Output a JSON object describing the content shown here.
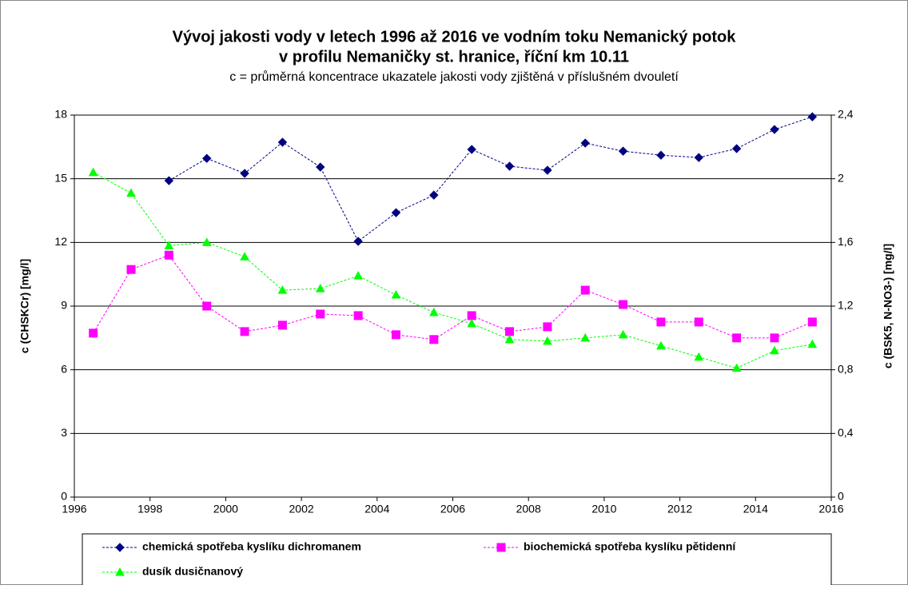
{
  "chart_data": {
    "type": "line",
    "title": [
      "Vývoj jakosti vody v letech 1996 až 2016 ve vodním toku Nemanický potok",
      "v profilu Nemaničky st. hranice, říční km 10.11"
    ],
    "subtitle": "c = průměrná koncentrace ukazatele jakosti vody zjištěná v příslušném dvouletí",
    "ylabel": "c (CHSKCr) [mg/l]",
    "y2label": "c (BSK5, N-NO3-) [mg/l]",
    "x": [
      1996.5,
      1997.5,
      1998.5,
      1999.5,
      2000.5,
      2001.5,
      2002.5,
      2003.5,
      2004.5,
      2005.5,
      2006.5,
      2007.5,
      2008.5,
      2009.5,
      2010.5,
      2011.5,
      2012.5,
      2013.5,
      2014.5,
      2015.5
    ],
    "xlim": [
      1996,
      2016
    ],
    "xticks": [
      1996,
      1998,
      2000,
      2002,
      2004,
      2006,
      2008,
      2010,
      2012,
      2014,
      2016
    ],
    "ylim": [
      0,
      18
    ],
    "yticks": [
      0,
      3,
      6,
      9,
      12,
      15,
      18
    ],
    "y2lim": [
      0,
      2.4
    ],
    "y2ticks": [
      0,
      {
        "value": 0.4,
        "label": "0,4"
      },
      {
        "value": 0.8,
        "label": "0,8"
      },
      {
        "value": 1.2,
        "label": "1,2"
      },
      {
        "value": 1.6,
        "label": "1,6"
      },
      2,
      {
        "value": 2.4,
        "label": "2,4"
      }
    ],
    "grid": true,
    "legend": "bottom",
    "series": [
      {
        "name": "chemická spotřeba kyslíku dichromanem",
        "color": "#000080",
        "marker": "diamond",
        "values": [
          null,
          null,
          14.91,
          15.96,
          15.25,
          16.72,
          15.55,
          12.05,
          13.4,
          14.23,
          16.38,
          15.59,
          15.4,
          16.68,
          16.3,
          16.11,
          16.0,
          16.42,
          17.32,
          17.92
        ]
      },
      {
        "name": "biochemická spotřeba kyslíku pětidenní",
        "color": "#ff00ff",
        "marker": "square",
        "axis": "y2",
        "values": [
          1.03,
          1.43,
          1.52,
          1.2,
          1.04,
          1.08,
          1.15,
          1.14,
          1.02,
          0.99,
          1.14,
          1.04,
          1.07,
          1.3,
          1.21,
          1.1,
          1.1,
          1.0,
          1.0,
          1.1
        ]
      },
      {
        "name": "dusík dusičnanový",
        "color": "#00ff00",
        "marker": "triangle",
        "axis": "y2",
        "values": [
          2.04,
          1.91,
          1.58,
          1.6,
          1.51,
          1.3,
          1.31,
          1.39,
          1.27,
          1.16,
          1.09,
          0.99,
          0.98,
          1.0,
          1.02,
          0.95,
          0.88,
          0.81,
          0.92,
          0.96
        ]
      }
    ]
  }
}
